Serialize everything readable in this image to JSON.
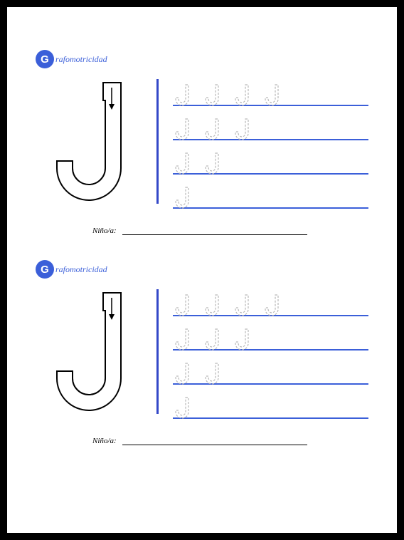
{
  "worksheet": {
    "header_letter": "G",
    "header_text": "rafomotricidad",
    "circle_color": "#3b5fd9",
    "header_text_color": "#3b5fd9",
    "divider_color": "#3448c8",
    "line_color": "#3b5fd9",
    "trace_color": "#b8b8b8",
    "letter_outline_color": "#000000",
    "arrow_color": "#000000",
    "name_label": "Niño/a:",
    "practice_rows": [
      {
        "letter_count": 4
      },
      {
        "letter_count": 3
      },
      {
        "letter_count": 2
      },
      {
        "letter_count": 1
      }
    ]
  }
}
